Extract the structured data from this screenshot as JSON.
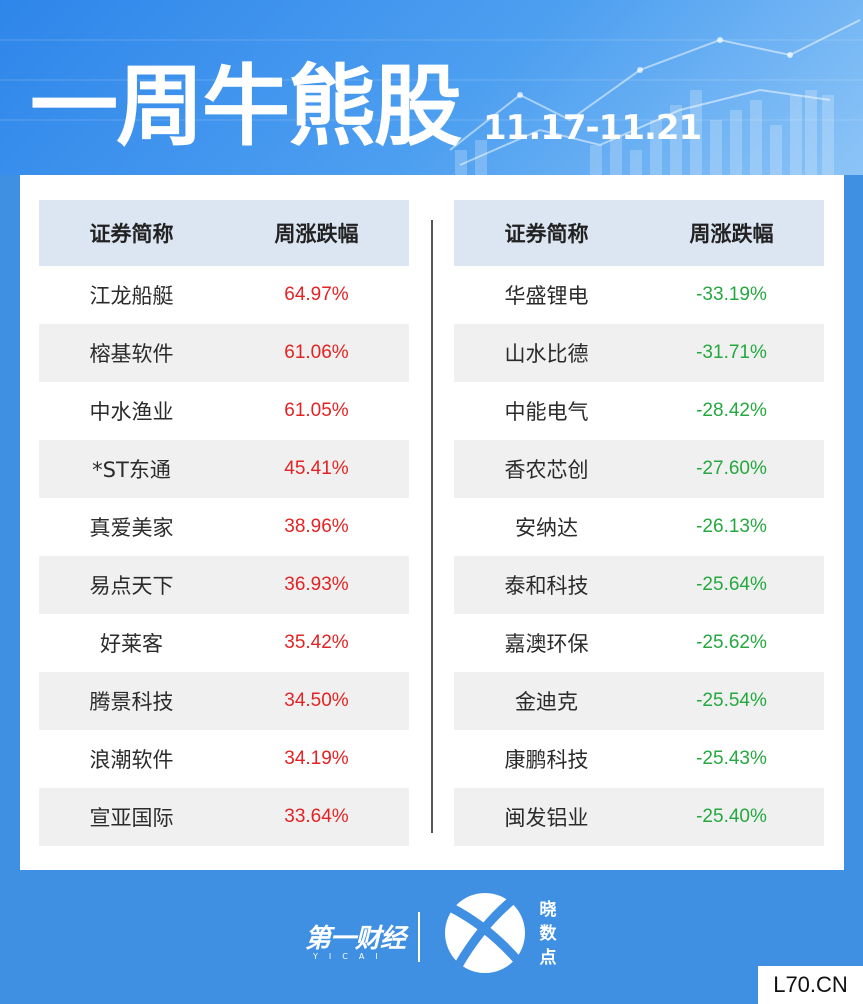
{
  "header": {
    "title": "一周牛熊股",
    "date_range": "11.17-11.21"
  },
  "left_table": {
    "col_name": "证券简称",
    "col_change": "周涨跌幅",
    "rows": [
      {
        "name": "江龙船艇",
        "change": "64.97%"
      },
      {
        "name": "榕基软件",
        "change": "61.06%"
      },
      {
        "name": "中水渔业",
        "change": "61.05%"
      },
      {
        "name": "*ST东通",
        "change": "45.41%"
      },
      {
        "name": "真爱美家",
        "change": "38.96%"
      },
      {
        "name": "易点天下",
        "change": "36.93%"
      },
      {
        "name": "好莱客",
        "change": "35.42%"
      },
      {
        "name": "腾景科技",
        "change": "34.50%"
      },
      {
        "name": "浪潮软件",
        "change": "34.19%"
      },
      {
        "name": "宣亚国际",
        "change": "33.64%"
      }
    ]
  },
  "right_table": {
    "col_name": "证券简称",
    "col_change": "周涨跌幅",
    "rows": [
      {
        "name": "华盛锂电",
        "change": "-33.19%"
      },
      {
        "name": "山水比德",
        "change": "-31.71%"
      },
      {
        "name": "中能电气",
        "change": "-28.42%"
      },
      {
        "name": "香农芯创",
        "change": "-27.60%"
      },
      {
        "name": "安纳达",
        "change": "-26.13%"
      },
      {
        "name": "泰和科技",
        "change": "-25.64%"
      },
      {
        "name": "嘉澳环保",
        "change": "-25.62%"
      },
      {
        "name": "金迪克",
        "change": "-25.54%"
      },
      {
        "name": "康鹏科技",
        "change": "-25.43%"
      },
      {
        "name": "闽发铝业",
        "change": "-25.40%"
      }
    ]
  },
  "footer": {
    "brand": "第一财经",
    "brand_sub": "YICAI",
    "xiao_chars": [
      "晓",
      "数",
      "点"
    ],
    "watermark": "L70.CN"
  },
  "colors": {
    "up": "#e32323",
    "down": "#24a83f",
    "header_bg": "#dce6f2",
    "page_bg": "#3f8fe3"
  }
}
